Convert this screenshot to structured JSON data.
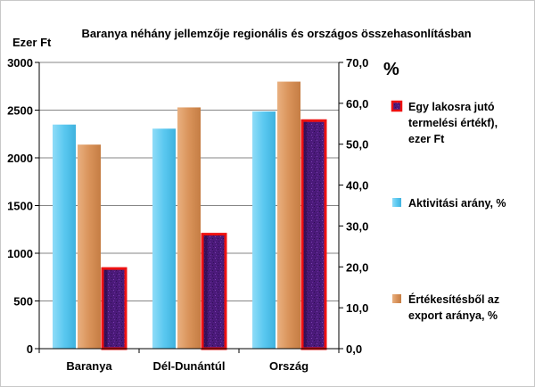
{
  "chart_data": {
    "type": "bar",
    "title": "Baranya néhány jellemzője  regionális és országos összehasonlításban",
    "categories": [
      "Baranya",
      "Dél-Dunántúl",
      "Ország"
    ],
    "y_left": {
      "label": "Ezer Ft",
      "ylim": [
        0,
        3000
      ],
      "ticks": [
        "0",
        "500",
        "1000",
        "1500",
        "2000",
        "2500",
        "3000"
      ]
    },
    "y_right": {
      "label": "%",
      "ylim": [
        0,
        70
      ],
      "ticks": [
        "0,0",
        "10,0",
        "20,0",
        "30,0",
        "40,0",
        "50,0",
        "60,0",
        "70,0"
      ]
    },
    "series": [
      {
        "name": "Aktivitási arány, %",
        "axis": "right",
        "color": "#5ac8f0",
        "values": [
          54.8,
          53.8,
          58.0
        ]
      },
      {
        "name": "Értékesítésből az export aránya, %",
        "axis": "right",
        "color": "#d9935a",
        "values": [
          49.9,
          59.0,
          65.3
        ]
      },
      {
        "name": "Egy lakosra jutó termelési értékf), ezer Ft",
        "axis": "left",
        "color": "#4b1a7a",
        "border": "#ee1111",
        "values": [
          840,
          1200,
          2390
        ]
      }
    ],
    "legend": {
      "position": "right",
      "items": [
        {
          "lines": [
            "Egy lakosra jutó",
            "termelési értékf),",
            "ezer Ft"
          ]
        },
        {
          "lines": [
            "Aktivitási arány, %"
          ]
        },
        {
          "lines": [
            "Értékesítésből az",
            "export aránya, %"
          ]
        }
      ]
    },
    "grid": true
  }
}
